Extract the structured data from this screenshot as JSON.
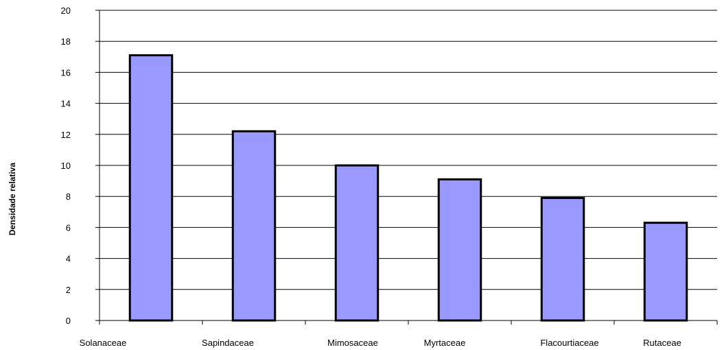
{
  "chart_data": {
    "type": "bar",
    "title": "",
    "xlabel": "",
    "ylabel": "Densidade relativa",
    "categories": [
      "Solanaceae",
      "Sapindaceae",
      "Mimosaceae",
      "Myrtaceae",
      "Flacourtiaceae",
      "Rutaceae"
    ],
    "values": [
      17.1,
      12.2,
      10.0,
      9.1,
      7.9,
      6.3
    ],
    "ylim": [
      0,
      20
    ],
    "yticks": [
      0,
      2,
      4,
      6,
      8,
      10,
      12,
      14,
      16,
      18,
      20
    ],
    "grid": true,
    "legend": "none",
    "bar_color": "#9999ff",
    "bar_edge_color": "#000000"
  }
}
